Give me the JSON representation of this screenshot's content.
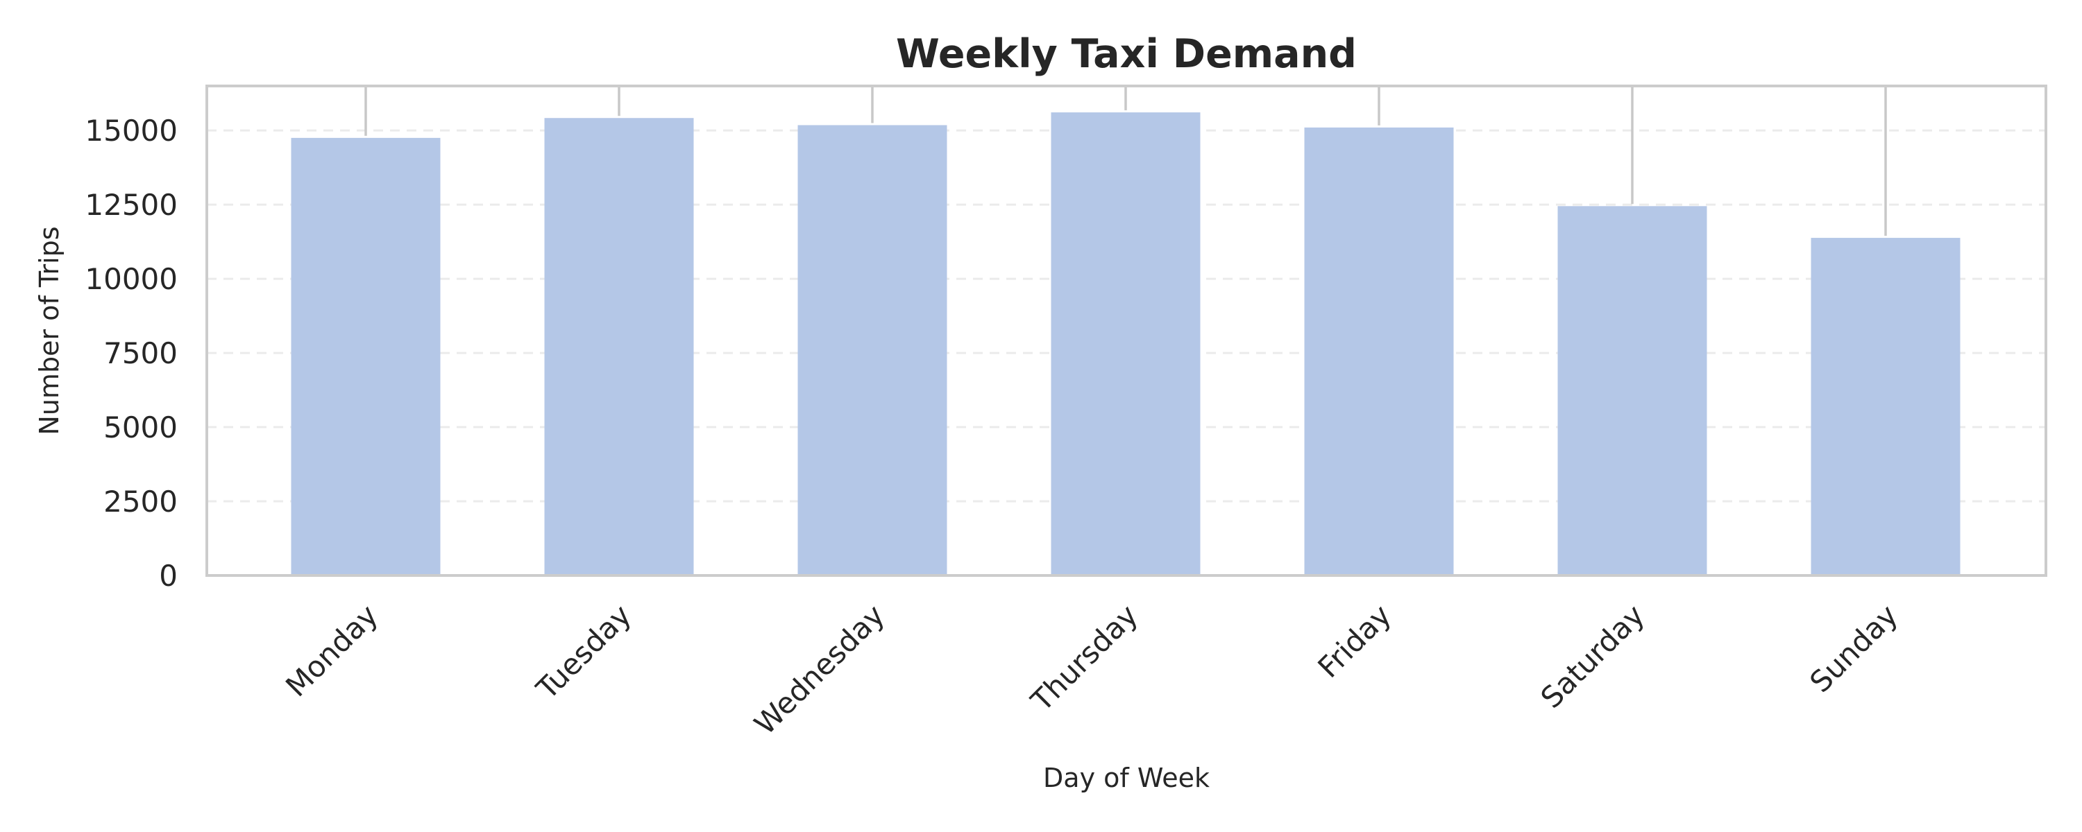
{
  "chart_data": {
    "type": "bar",
    "title": "Weekly Taxi Demand",
    "xlabel": "Day of Week",
    "ylabel": "Number of Trips",
    "categories": [
      "Monday",
      "Tuesday",
      "Wednesday",
      "Thursday",
      "Friday",
      "Saturday",
      "Sunday"
    ],
    "values": [
      14750,
      15420,
      15180,
      15610,
      15100,
      12450,
      11380
    ],
    "error_upper": [
      16500,
      16500,
      16500,
      16500,
      16500,
      16500,
      16500
    ],
    "ylim": [
      0,
      16500
    ],
    "yticks": [
      0,
      2500,
      5000,
      7500,
      10000,
      12500,
      15000
    ],
    "grid": true,
    "bar_color": "#b4c7e7",
    "error_color": "#c8c8c8"
  }
}
